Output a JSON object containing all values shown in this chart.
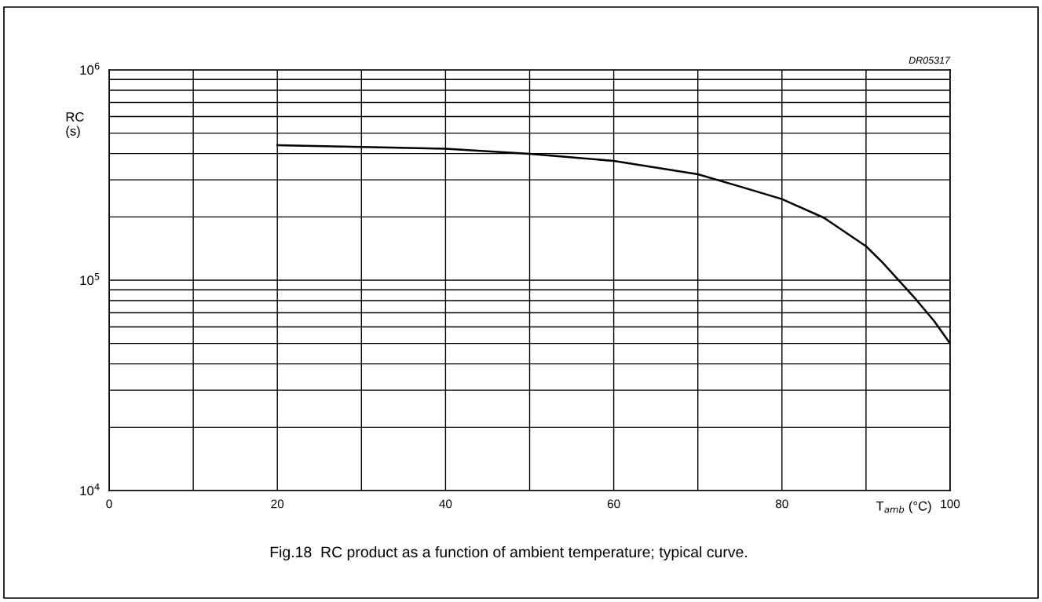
{
  "chart_data": {
    "type": "line",
    "title": "Fig.18  RC product as a function of ambient temperature; typical curve.",
    "xlabel": "T$_{amb}$ (°C)",
    "ylabel": "RC\n(s)",
    "annotations": [
      "DR05317"
    ],
    "x": [
      20,
      30,
      40,
      50,
      60,
      70,
      75,
      80,
      85,
      90,
      92,
      95.6,
      98.1,
      100
    ],
    "series": [
      {
        "color": "#000000",
        "values": [
          438000,
          430000,
          422000,
          399000,
          369000,
          319000,
          279000,
          243000,
          198000,
          145000,
          121000,
          84000,
          64000,
          50000
        ]
      }
    ],
    "log": "y",
    "xlim": [
      0,
      100
    ],
    "ylim": [
      10000,
      1000000
    ],
    "xticks": [
      0,
      {
        "value": 10,
        "label": null
      },
      20,
      {
        "value": 30,
        "label": null
      },
      40,
      {
        "value": 50,
        "label": null
      },
      60,
      {
        "value": 70,
        "label": null
      },
      80,
      {
        "value": 90,
        "label": null
      },
      100
    ],
    "yticks": [
      {
        "value": 10000,
        "label": "10$^{4}$"
      },
      {
        "value": 20000,
        "label": null
      },
      {
        "value": 30000,
        "label": null
      },
      {
        "value": 40000,
        "label": null
      },
      {
        "value": 50000,
        "label": null
      },
      {
        "value": 60000,
        "label": null
      },
      {
        "value": 70000,
        "label": null
      },
      {
        "value": 80000,
        "label": null
      },
      {
        "value": 90000,
        "label": null
      },
      {
        "value": 100000,
        "label": "10$^{5}$"
      },
      {
        "value": 200000,
        "label": null
      },
      {
        "value": 300000,
        "label": null
      },
      {
        "value": 400000,
        "label": null
      },
      {
        "value": 500000,
        "label": null
      },
      {
        "value": 600000,
        "label": null
      },
      {
        "value": 700000,
        "label": null
      },
      {
        "value": 800000,
        "label": null
      },
      {
        "value": 900000,
        "label": null
      },
      {
        "value": 1000000,
        "label": "10$^{6}$"
      }
    ],
    "grid": true,
    "legend": false,
    "marker": "none",
    "line_style": "solid"
  }
}
